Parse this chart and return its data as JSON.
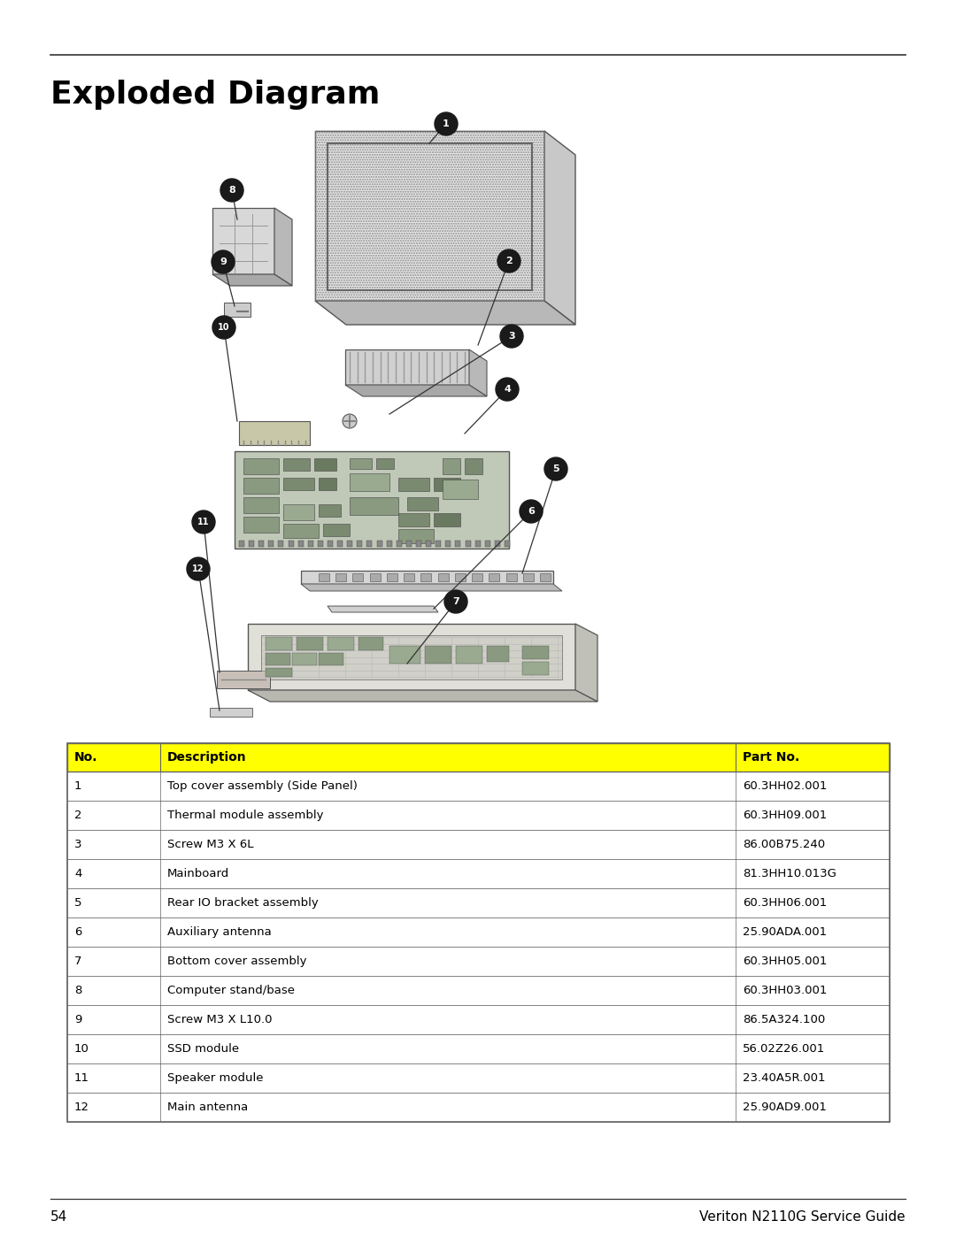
{
  "title": "Exploded Diagram",
  "page_number": "54",
  "footer_text": "Veriton N2110G Service Guide",
  "table_header": [
    "No.",
    "Description",
    "Part No."
  ],
  "table_header_bg": "#FFFF00",
  "table_rows": [
    [
      "1",
      "Top cover assembly (Side Panel)",
      "60.3HH02.001"
    ],
    [
      "2",
      "Thermal module assembly",
      "60.3HH09.001"
    ],
    [
      "3",
      "Screw M3 X 6L",
      "86.00B75.240"
    ],
    [
      "4",
      "Mainboard",
      "81.3HH10.013G"
    ],
    [
      "5",
      "Rear IO bracket assembly",
      "60.3HH06.001"
    ],
    [
      "6",
      "Auxiliary antenna",
      "25.90ADA.001"
    ],
    [
      "7",
      "Bottom cover assembly",
      "60.3HH05.001"
    ],
    [
      "8",
      "Computer stand/base",
      "60.3HH03.001"
    ],
    [
      "9",
      "Screw M3 X L10.0",
      "86.5A324.100"
    ],
    [
      "10",
      "SSD module",
      "56.02Z26.001"
    ],
    [
      "11",
      "Speaker module",
      "23.40A5R.001"
    ],
    [
      "12",
      "Main antenna",
      "25.90AD9.001"
    ]
  ],
  "bg_color": "#ffffff",
  "text_color": "#000000",
  "callout_bg": "#1a1a1a",
  "callout_text": "#ffffff",
  "table_border_color": "#666666"
}
